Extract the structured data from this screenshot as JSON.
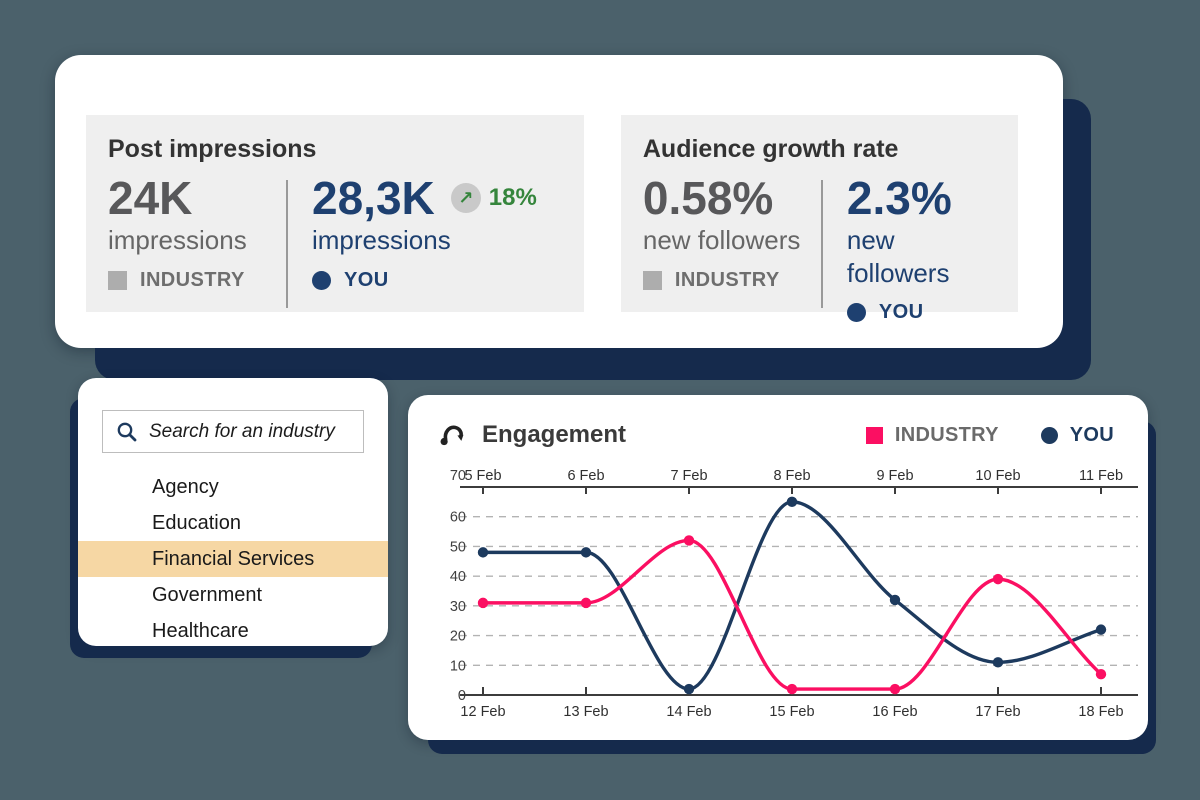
{
  "page": {
    "background": "#4b616b",
    "card_shadow_navy": "#152a4c"
  },
  "stats": {
    "post_impressions": {
      "title": "Post impressions",
      "industry": {
        "value": "24K",
        "unit": "impressions",
        "legend": "INDUSTRY"
      },
      "you": {
        "value": "28,3K",
        "unit": "impressions",
        "legend": "YOU",
        "delta": "18%",
        "delta_arrow": "↗"
      }
    },
    "audience_growth": {
      "title": "Audience growth rate",
      "industry": {
        "value": "0.58%",
        "unit": "new followers",
        "legend": "INDUSTRY"
      },
      "you": {
        "value": "2.3%",
        "unit": "new followers",
        "legend": "YOU"
      }
    }
  },
  "search_panel": {
    "placeholder": "Search for an industry",
    "items": [
      "Agency",
      "Education",
      "Financial Services",
      "Government",
      "Healthcare"
    ],
    "selected": "Financial Services",
    "highlight_color": "#f6d7a4"
  },
  "chart_data": {
    "type": "line",
    "title": "Engagement",
    "x_top_labels": [
      "5 Feb",
      "6 Feb",
      "7 Feb",
      "8 Feb",
      "9 Feb",
      "10 Feb",
      "11 Feb"
    ],
    "x_bottom_labels": [
      "12 Feb",
      "13 Feb",
      "14 Feb",
      "15 Feb",
      "16 Feb",
      "17 Feb",
      "18 Feb"
    ],
    "ylim": [
      0,
      70
    ],
    "yticks": [
      0,
      10,
      20,
      30,
      40,
      50,
      60,
      70
    ],
    "grid": "horizontal-dashed",
    "legend_position": "top-right",
    "series": [
      {
        "name": "INDUSTRY",
        "color": "#fb0f62",
        "marker": "square",
        "values": [
          31,
          31,
          52,
          2,
          2,
          39,
          7
        ]
      },
      {
        "name": "YOU",
        "color": "#1d3a5e",
        "marker": "circle",
        "values": [
          48,
          48,
          2,
          65,
          32,
          11,
          22
        ]
      }
    ]
  }
}
